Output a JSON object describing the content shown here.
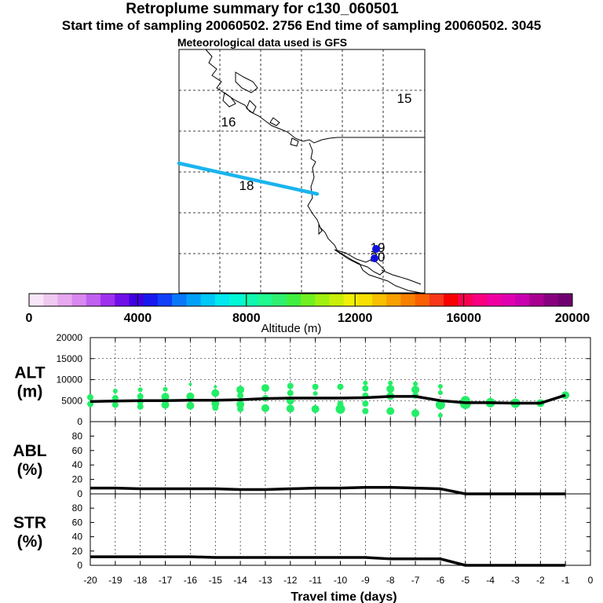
{
  "header": {
    "title": "Retroplume summary for c130_060501",
    "sampling_line": "Start time of sampling 20060502.  2756     End time of sampling 20060502.  3045",
    "met_line": "Meteorological data used is GFS"
  },
  "colors": {
    "trajectory": "#1ab4ee",
    "marker": "#1111dd",
    "dots": "#22ee66",
    "median": "#000000"
  },
  "map": {
    "trajectory_labels": [
      "15",
      "16",
      "18",
      "19",
      "20"
    ]
  },
  "colorbar": {
    "ticks": [
      "0",
      "4000",
      "8000",
      "12000",
      "16000",
      "20000"
    ],
    "label": "Altitude (m)",
    "colors": [
      "#f8e6f8",
      "#f0c8f0",
      "#e8a8f0",
      "#d888f0",
      "#c060f0",
      "#a030f0",
      "#7010e8",
      "#4000e0",
      "#1818f0",
      "#1040f8",
      "#0878f8",
      "#00a0f8",
      "#00c8f8",
      "#00e8f0",
      "#00f8d8",
      "#10f8b0",
      "#20f890",
      "#30f070",
      "#40f040",
      "#70f020",
      "#a0f010",
      "#c8f008",
      "#f0f008",
      "#f8e000",
      "#f8c000",
      "#f8a000",
      "#f88000",
      "#f86000",
      "#f83818",
      "#f80000",
      "#f80050",
      "#f80080",
      "#f000a0",
      "#e000b0",
      "#c800b0",
      "#a80090",
      "#880080",
      "#700070"
    ]
  },
  "chart_data": [
    {
      "type": "scatter",
      "id": "ALT",
      "ylabel": [
        "ALT",
        "(m)"
      ],
      "ylim": [
        0,
        20000
      ],
      "yticks": [
        "0",
        "5000",
        "10000",
        "15000",
        "20000"
      ],
      "x": [
        -20,
        -19,
        -18,
        -17,
        -16,
        -15,
        -14,
        -13,
        -12,
        -11,
        -10,
        -9,
        -8,
        -7,
        -6,
        -5,
        -4,
        -3,
        -2,
        -1
      ],
      "median": [
        4800,
        4900,
        5000,
        5000,
        5100,
        5100,
        5200,
        5500,
        5600,
        5600,
        5600,
        5700,
        6000,
        6000,
        5000,
        4500,
        4500,
        4400,
        4400,
        6300
      ],
      "points": [
        [
          -20,
          5800,
          4
        ],
        [
          -20,
          4200,
          4
        ],
        [
          -19,
          7300,
          3
        ],
        [
          -19,
          5600,
          4
        ],
        [
          -19,
          4000,
          4
        ],
        [
          -18,
          7600,
          3
        ],
        [
          -18,
          6000,
          4
        ],
        [
          -18,
          4700,
          4
        ],
        [
          -18,
          3600,
          4
        ],
        [
          -17,
          7700,
          3
        ],
        [
          -17,
          5900,
          5
        ],
        [
          -17,
          4000,
          5
        ],
        [
          -16,
          8900,
          2
        ],
        [
          -16,
          6000,
          5
        ],
        [
          -16,
          3800,
          5
        ],
        [
          -15,
          8300,
          2
        ],
        [
          -15,
          6800,
          5
        ],
        [
          -15,
          4300,
          5
        ],
        [
          -15,
          3300,
          4
        ],
        [
          -14,
          7600,
          5
        ],
        [
          -14,
          6200,
          4
        ],
        [
          -14,
          4100,
          5
        ],
        [
          -14,
          3000,
          4
        ],
        [
          -13,
          8000,
          5
        ],
        [
          -13,
          5600,
          4
        ],
        [
          -13,
          3200,
          5
        ],
        [
          -12,
          8500,
          4
        ],
        [
          -12,
          6800,
          4
        ],
        [
          -12,
          5000,
          5
        ],
        [
          -12,
          3100,
          5
        ],
        [
          -11,
          8300,
          4
        ],
        [
          -11,
          6700,
          3
        ],
        [
          -11,
          3000,
          5
        ],
        [
          -10,
          8300,
          4
        ],
        [
          -10,
          4200,
          4
        ],
        [
          -10,
          3000,
          6
        ],
        [
          -9,
          9200,
          3
        ],
        [
          -9,
          7900,
          4
        ],
        [
          -9,
          6200,
          4
        ],
        [
          -9,
          4300,
          4
        ],
        [
          -9,
          2500,
          4
        ],
        [
          -8,
          9200,
          3
        ],
        [
          -8,
          7800,
          5
        ],
        [
          -8,
          6100,
          5
        ],
        [
          -8,
          2500,
          5
        ],
        [
          -7,
          9000,
          3
        ],
        [
          -7,
          7600,
          5
        ],
        [
          -7,
          6200,
          4
        ],
        [
          -7,
          2000,
          5
        ],
        [
          -6,
          8400,
          3
        ],
        [
          -6,
          6900,
          3
        ],
        [
          -6,
          4000,
          6
        ],
        [
          -6,
          1500,
          3
        ],
        [
          -5,
          5000,
          6
        ],
        [
          -5,
          4300,
          7
        ],
        [
          -4,
          7300,
          1
        ],
        [
          -4,
          4500,
          6
        ],
        [
          -3,
          4400,
          6
        ],
        [
          -2,
          4400,
          5
        ],
        [
          -1,
          6300,
          5
        ]
      ]
    },
    {
      "type": "line",
      "id": "ABL",
      "ylabel": [
        "ABL",
        "(%)"
      ],
      "ylim": [
        0,
        100
      ],
      "yticks": [
        "0",
        "20",
        "40",
        "60",
        "80"
      ],
      "x": [
        -20,
        -19,
        -18,
        -17,
        -16,
        -15,
        -14,
        -13,
        -12,
        -11,
        -10,
        -9,
        -8,
        -7,
        -6,
        -5,
        -4,
        -3,
        -2,
        -1
      ],
      "values": [
        8,
        8,
        7,
        7,
        7,
        7,
        6,
        6,
        7,
        8,
        8,
        9,
        9,
        8,
        7,
        0,
        0,
        0,
        0,
        0
      ]
    },
    {
      "type": "line",
      "id": "STR",
      "ylabel": [
        "STR",
        "(%)"
      ],
      "ylim": [
        0,
        100
      ],
      "yticks": [
        "0",
        "20",
        "40",
        "60",
        "80"
      ],
      "x": [
        -20,
        -19,
        -18,
        -17,
        -16,
        -15,
        -14,
        -13,
        -12,
        -11,
        -10,
        -9,
        -8,
        -7,
        -6,
        -5,
        -4,
        -3,
        -2,
        -1
      ],
      "values": [
        12,
        12,
        12,
        12,
        12,
        11,
        11,
        11,
        11,
        11,
        11,
        11,
        9,
        9,
        9,
        0,
        0,
        0,
        0,
        0
      ],
      "xticks": [
        "-20",
        "-19",
        "-18",
        "-17",
        "-16",
        "-15",
        "-14",
        "-13",
        "-12",
        "-11",
        "-10",
        "-9",
        "-8",
        "-7",
        "-6",
        "-5",
        "-4",
        "-3",
        "-2",
        "-1",
        "0"
      ],
      "xlabel": "Travel time (days)"
    }
  ]
}
